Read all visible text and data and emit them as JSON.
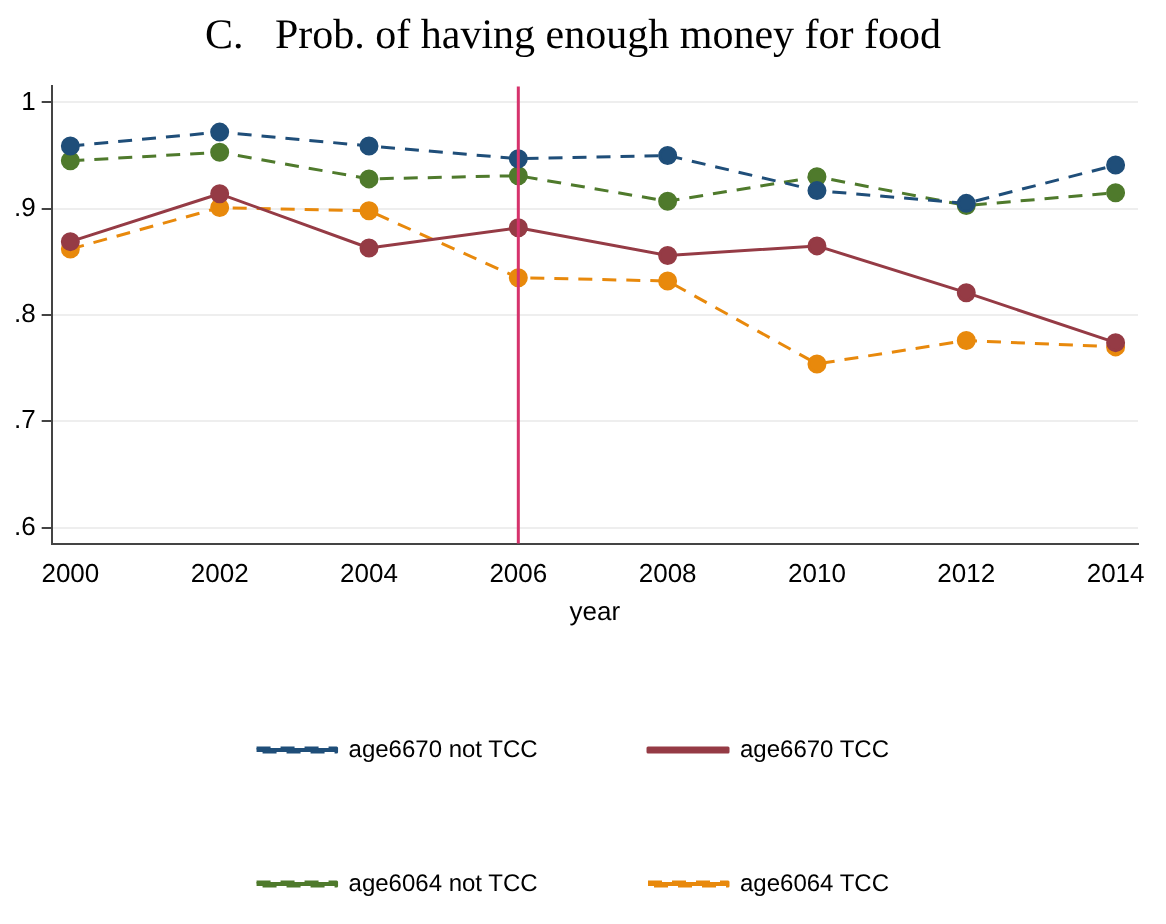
{
  "chart_data": {
    "type": "line",
    "title": "C.   Prob. of having enough money for food",
    "xlabel": "year",
    "x": [
      2000,
      2002,
      2004,
      2006,
      2008,
      2010,
      2012,
      2014
    ],
    "series": [
      {
        "name": "age6670 not TCC",
        "color": "#1f4e79",
        "line_style": "dashed",
        "values": [
          0.959,
          0.972,
          0.959,
          0.947,
          0.95,
          0.917,
          0.905,
          0.941
        ]
      },
      {
        "name": "age6670 TCC",
        "color": "#953b45",
        "line_style": "solid",
        "values": [
          0.869,
          0.914,
          0.863,
          0.882,
          0.856,
          0.865,
          0.821,
          0.774
        ]
      },
      {
        "name": "age6064 not TCC",
        "color": "#4f7a2c",
        "line_style": "dashed",
        "values": [
          0.945,
          0.953,
          0.928,
          0.931,
          0.907,
          0.93,
          0.903,
          0.915
        ]
      },
      {
        "name": "age6064 TCC",
        "color": "#e8890c",
        "line_style": "dashed",
        "values": [
          0.862,
          0.901,
          0.898,
          0.835,
          0.832,
          0.754,
          0.776,
          0.77
        ]
      }
    ],
    "xlim": [
      1999.75,
      2014.3
    ],
    "xticks": [
      2000,
      2002,
      2004,
      2006,
      2008,
      2010,
      2012,
      2014
    ],
    "ylim": [
      0.585,
      1.015
    ],
    "yticks": [
      {
        "value": 0.6,
        "label": ".6"
      },
      {
        "value": 0.7,
        "label": ".7"
      },
      {
        "value": 0.8,
        "label": ".8"
      },
      {
        "value": 0.9,
        "label": ".9"
      },
      {
        "value": 1,
        "label": "1"
      }
    ],
    "ref_lines": [
      {
        "axis": "x",
        "value": 2006,
        "color": "#d6336c",
        "line_style": "solid"
      }
    ],
    "grid": "y",
    "legend": "bottom",
    "marker": "circle"
  }
}
